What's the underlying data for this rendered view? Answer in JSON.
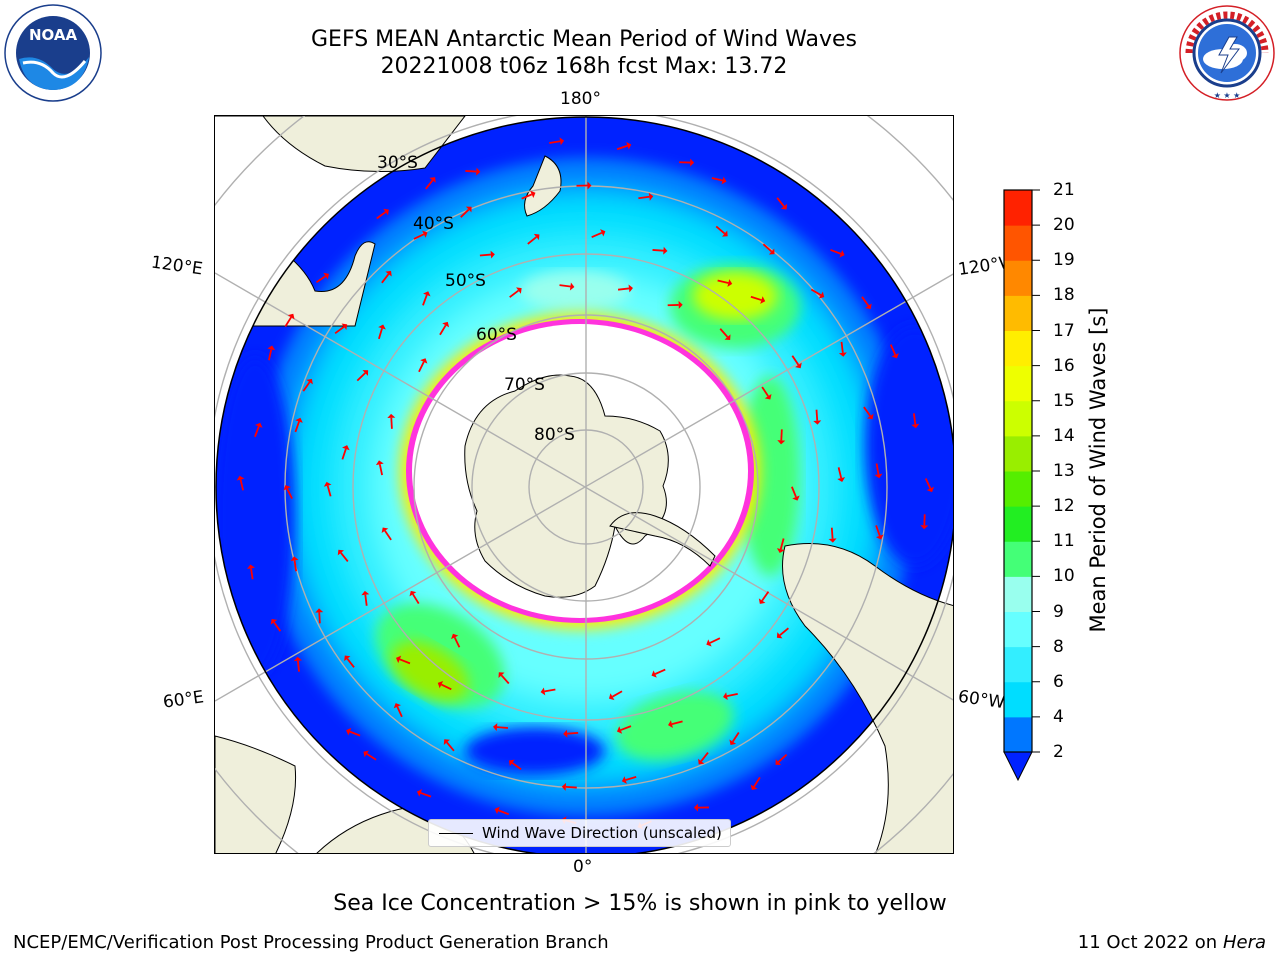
{
  "figure": {
    "title_line1": "GEFS MEAN Antarctic Mean Period of Wind Waves",
    "title_line2": "20221008 t06z 168h fcst   Max: 13.72",
    "legend_label": "Wind Wave Direction (unscaled)",
    "note": "Sea Ice Concentration > 15% is shown in pink to yellow",
    "footer_left": "NCEP/EMC/Verification Post Processing Product Generation Branch",
    "footer_date": "11 Oct 2022 on ",
    "footer_machine": "Hera"
  },
  "logos": {
    "noaa": {
      "text": "NOAA",
      "ring_text": "NATIONAL OCEANIC AND ATMOSPHERIC ADMINISTRATION · U.S. DEPARTMENT OF COMMERCE"
    },
    "nws": {
      "ring_text": "NATIONAL WEATHER SERVICE"
    }
  },
  "map": {
    "projection": "south-polar-stereographic",
    "longitude_labels": {
      "top": "180°",
      "bottom": "0°",
      "upper_left": "120°E",
      "upper_right": "120°W",
      "lower_left": "60°E",
      "lower_right": "60°W"
    },
    "latitude_labels": [
      "30°S",
      "40°S",
      "50°S",
      "60°S",
      "70°S",
      "80°S"
    ],
    "field": "Mean Period of Wind Waves [s]",
    "max_value": 13.72
  },
  "colorbar": {
    "label": "Mean Period of Wind Waves [s]",
    "ticks": [
      "2",
      "4",
      "6",
      "8",
      "9",
      "10",
      "11",
      "12",
      "13",
      "14",
      "15",
      "16",
      "17",
      "18",
      "19",
      "20",
      "21"
    ],
    "colors": [
      "#0077ff",
      "#00ddff",
      "#33eeff",
      "#66ffff",
      "#99ffee",
      "#44ff77",
      "#22ee22",
      "#55ee00",
      "#99ee00",
      "#ccff00",
      "#eeff00",
      "#ffee00",
      "#ffbb00",
      "#ff8800",
      "#ff5500",
      "#ff2200"
    ],
    "under_color": "#0022ff",
    "extend": "min"
  },
  "colors": {
    "land": "#efefdb",
    "ocean_deep": "#0022ff",
    "sea_ice_edge": "#ff33dd",
    "arrows": "#ff0000",
    "grid": "#b0b0b0"
  }
}
